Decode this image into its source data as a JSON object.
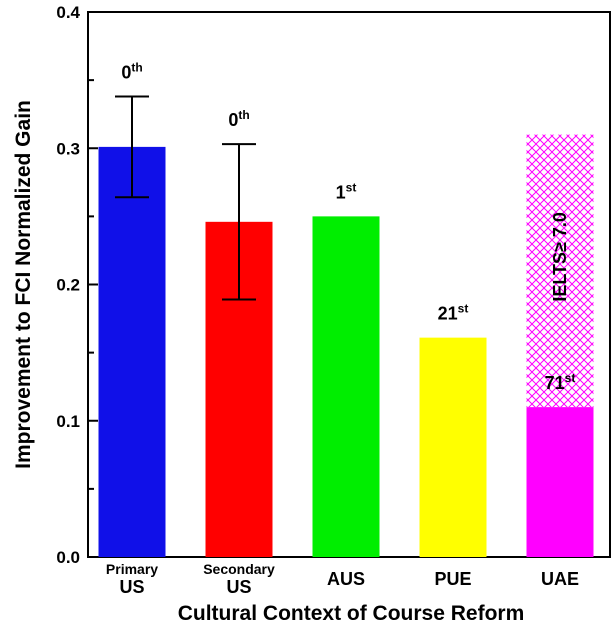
{
  "chart_data": {
    "type": "bar",
    "xlabel": "Cultural Context of Course Reform",
    "ylabel": "Improvement to FCI Normalized Gain",
    "ylim": [
      0,
      0.4
    ],
    "yticks": [
      "0.0",
      "0.1",
      "0.2",
      "0.3",
      "0.4"
    ],
    "categories": [
      {
        "line1": "Primary",
        "line2": "US"
      },
      {
        "line1": "Secondary",
        "line2": "US"
      },
      {
        "line1": "AUS",
        "line2": ""
      },
      {
        "line1": "PUE",
        "line2": ""
      },
      {
        "line1": "UAE",
        "line2": ""
      }
    ],
    "values": [
      0.301,
      0.246,
      0.25,
      0.161,
      0.11
    ],
    "error_low": [
      0.264,
      0.189,
      null,
      null,
      null
    ],
    "error_high": [
      0.338,
      0.303,
      null,
      null,
      null
    ],
    "colors": [
      "#1010e8",
      "#ff0000",
      "#00ee00",
      "#ffff00",
      "#ff00ff"
    ],
    "ranks": [
      {
        "num": "0",
        "sup": "th"
      },
      {
        "num": "0",
        "sup": "th"
      },
      {
        "num": "1",
        "sup": "st"
      },
      {
        "num": "21",
        "sup": "st"
      },
      {
        "num": "71",
        "sup": "st"
      }
    ],
    "hatched_extension": {
      "category_index": 4,
      "from": 0.11,
      "to": 0.31,
      "color": "#ff00ff",
      "label": "IELTS≥ 7.0"
    },
    "grid": false
  }
}
